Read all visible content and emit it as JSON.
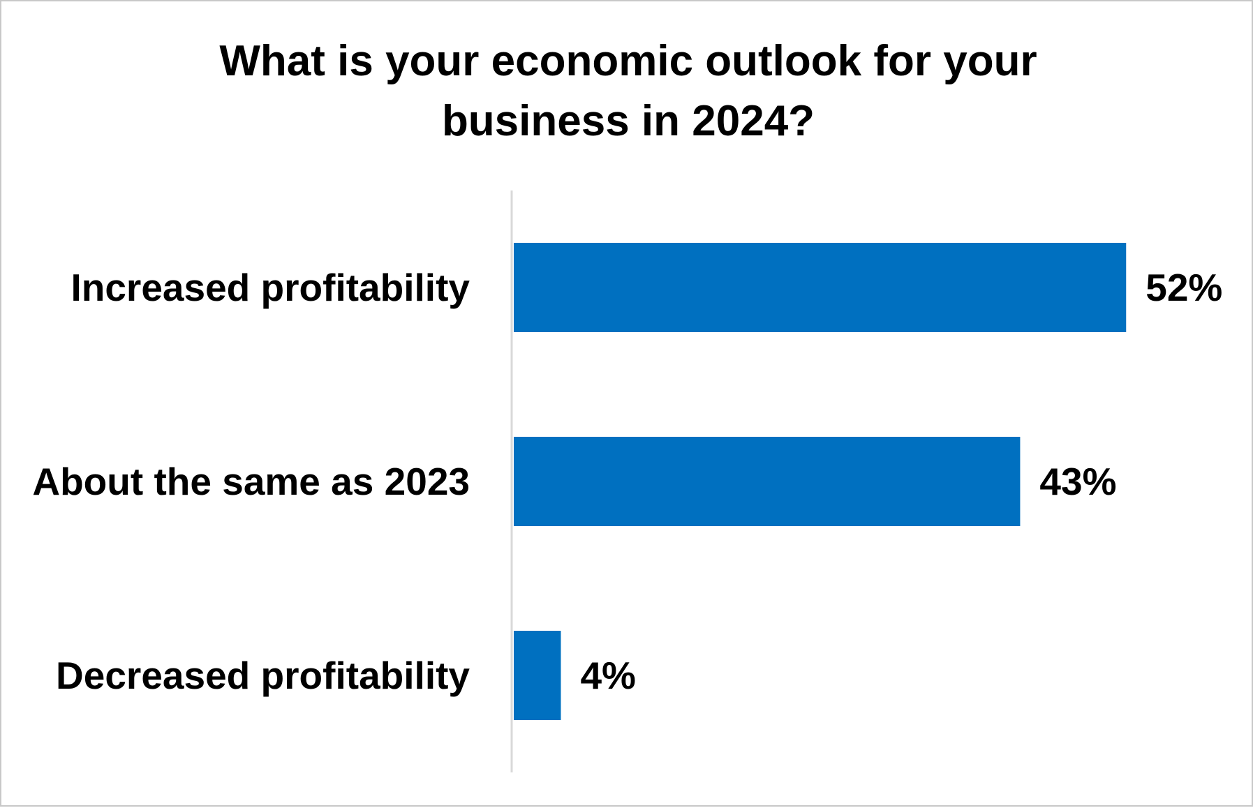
{
  "chart_data": {
    "type": "bar",
    "orientation": "horizontal",
    "title": "What is your economic outlook for your business in 2024?",
    "categories": [
      "Increased profitability",
      "About the same as 2023",
      "Decreased profitability"
    ],
    "values": [
      52,
      43,
      4
    ],
    "data_labels": [
      "52%",
      "43%",
      "4%"
    ],
    "xlabel": "",
    "ylabel": "",
    "grid": false,
    "legend": "none",
    "colors": {
      "bar": "#0070C0",
      "axis": "#D9D9D9",
      "text": "#000000"
    }
  }
}
